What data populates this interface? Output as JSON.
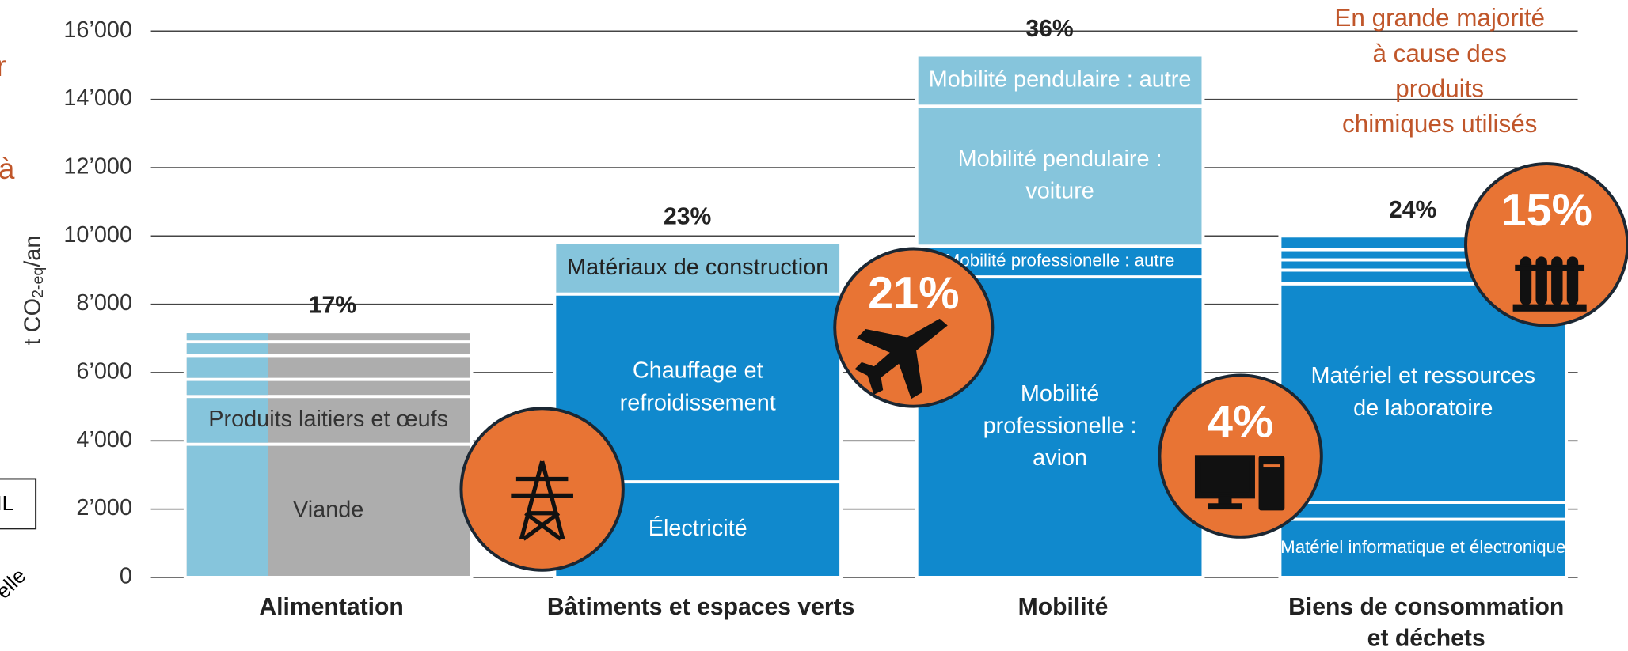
{
  "chart_data": {
    "type": "stacked-bar",
    "y_label": [
      "t CO",
      "2-eq",
      "/an"
    ],
    "ylim": [
      0,
      16000
    ],
    "yticks": [
      0,
      {
        "value": 2000,
        "label": "2’000"
      },
      {
        "value": 4000,
        "label": "4’000"
      },
      {
        "value": 6000,
        "label": "6’000"
      },
      {
        "value": 8000,
        "label": "8’000"
      },
      {
        "value": 10000,
        "label": "10’000"
      },
      {
        "value": 12000,
        "label": "12’000"
      },
      {
        "value": 14000,
        "label": "14’000"
      },
      {
        "value": 16000,
        "label": "16’000"
      }
    ],
    "grid": true,
    "categories": [
      [
        "Alimentation"
      ],
      [
        "Bâtiments et espaces verts"
      ],
      [
        "Mobilité"
      ],
      [
        "Biens de consommation",
        "et déchets"
      ]
    ],
    "share_labels": [
      "17%",
      "23%",
      "36%",
      "24%"
    ],
    "stacks": [
      [
        {
          "label": [
            "Viande"
          ],
          "value": 3900,
          "color": "#adadad"
        },
        {
          "label": [
            "Produits laitiers et œufs"
          ],
          "value": 1400,
          "color": "#adadad"
        },
        {
          "value": 500,
          "color": "#adadad"
        },
        {
          "value": 700,
          "color": "#adadad"
        },
        {
          "value": 400,
          "color": "#adadad"
        },
        {
          "value": 300,
          "color": "#adadad"
        }
      ],
      [
        {
          "label": [
            "Électricité"
          ],
          "value": 2800,
          "color": "#1089cd"
        },
        {
          "label": [
            "Chauffage et",
            "refroidissement"
          ],
          "value": 5500,
          "color": "#1089cd"
        },
        {
          "label": [
            "Matériaux de construction"
          ],
          "value": 1500,
          "color": "#86c5dc"
        }
      ],
      [
        {
          "label": [
            "Mobilité",
            "professionelle :",
            "avion"
          ],
          "value": 8800,
          "color": "#1089cd"
        },
        {
          "label": [
            "Mobilité professionelle : autre"
          ],
          "value": 900,
          "color": "#1089cd"
        },
        {
          "label": [
            "Mobilité pendulaire :",
            "voiture"
          ],
          "value": 4100,
          "color": "#86c5dc"
        },
        {
          "label": [
            "Mobilité pendulaire : autre"
          ],
          "value": 1500,
          "color": "#86c5dc"
        }
      ],
      [
        {
          "label": [
            "Matériel informatique et électronique"
          ],
          "value": 1700,
          "color": "#1089cd"
        },
        {
          "value": 500,
          "color": "#1089cd"
        },
        {
          "label": [
            "Matériel et ressources",
            "de laboratoire"
          ],
          "value": 6400,
          "color": "#1089cd"
        },
        {
          "value": 400,
          "color": "#1089cd"
        },
        {
          "value": 300,
          "color": "#1089cd"
        },
        {
          "value": 300,
          "color": "#1089cd"
        },
        {
          "value": 400,
          "color": "#1089cd"
        }
      ]
    ],
    "badges": [
      "21%",
      "4%",
      "15%"
    ],
    "annotation": [
      "En grande majorité",
      "à cause des",
      "produits",
      "chimiques utilisés"
    ],
    "fragments": [
      "r",
      "à",
      "IL",
      "elle"
    ]
  }
}
